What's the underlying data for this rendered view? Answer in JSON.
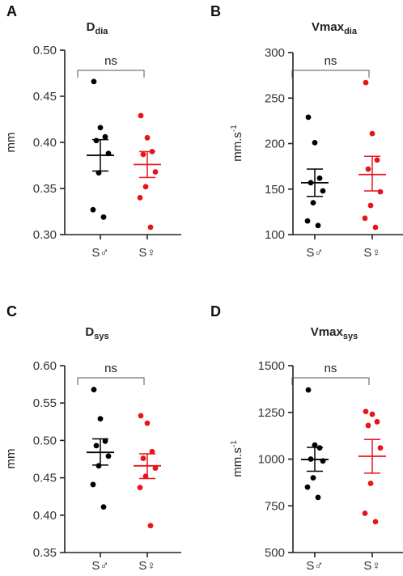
{
  "chart_data": [
    {
      "type": "scatter",
      "panel": "A",
      "title": "D",
      "title_sub": "dia",
      "ylabel": "mm",
      "ylabel_sup": "",
      "ylim": [
        0.3,
        0.5
      ],
      "yticks": [
        0.3,
        0.35,
        0.4,
        0.45,
        0.5
      ],
      "ytick_labels": [
        "0.30",
        "0.35",
        "0.40",
        "0.45",
        "0.50"
      ],
      "categories": [
        "S♂",
        "S♀"
      ],
      "significance": "ns",
      "grid": false,
      "series": [
        {
          "color": "#000000",
          "values": [
            0.466,
            0.416,
            0.406,
            0.402,
            0.388,
            0.367,
            0.327,
            0.319
          ],
          "mean": 0.386,
          "sem_low": 0.369,
          "sem_high": 0.403
        },
        {
          "color": "#e8141c",
          "values": [
            0.429,
            0.405,
            0.39,
            0.387,
            0.368,
            0.352,
            0.34,
            0.308
          ],
          "mean": 0.376,
          "sem_low": 0.362,
          "sem_high": 0.39
        }
      ]
    },
    {
      "type": "scatter",
      "panel": "B",
      "title": "Vmax",
      "title_sub": "dia",
      "ylabel": "mm.s",
      "ylabel_sup": "-1",
      "ylim": [
        100,
        300
      ],
      "yticks": [
        100,
        150,
        200,
        250,
        300
      ],
      "ytick_labels": [
        "100",
        "150",
        "200",
        "250",
        "300"
      ],
      "categories": [
        "S♂",
        "S♀"
      ],
      "significance": "ns",
      "grid": false,
      "series": [
        {
          "color": "#000000",
          "values": [
            229,
            201,
            162,
            157,
            148,
            135,
            115,
            110
          ],
          "mean": 157,
          "sem_low": 142,
          "sem_high": 172
        },
        {
          "color": "#e8141c",
          "values": [
            267,
            211,
            182,
            172,
            147,
            132,
            118,
            108
          ],
          "mean": 166,
          "sem_low": 148,
          "sem_high": 186
        }
      ]
    },
    {
      "type": "scatter",
      "panel": "C",
      "title": "D",
      "title_sub": "sys",
      "ylabel": "mm",
      "ylabel_sup": "",
      "ylim": [
        0.35,
        0.6
      ],
      "yticks": [
        0.35,
        0.4,
        0.45,
        0.5,
        0.55,
        0.6
      ],
      "ytick_labels": [
        "0.35",
        "0.40",
        "0.45",
        "0.50",
        "0.55",
        "0.60"
      ],
      "categories": [
        "S♂",
        "S♀"
      ],
      "significance": "ns",
      "grid": false,
      "series": [
        {
          "color": "#000000",
          "values": [
            0.568,
            0.529,
            0.499,
            0.493,
            0.479,
            0.466,
            0.441,
            0.411
          ],
          "mean": 0.484,
          "sem_low": 0.467,
          "sem_high": 0.502
        },
        {
          "color": "#e8141c",
          "values": [
            0.533,
            0.523,
            0.485,
            0.476,
            0.463,
            0.452,
            0.437,
            0.386
          ],
          "mean": 0.466,
          "sem_low": 0.449,
          "sem_high": 0.482
        }
      ]
    },
    {
      "type": "scatter",
      "panel": "D",
      "title": "Vmax",
      "title_sub": "sys",
      "ylabel": "mm.s",
      "ylabel_sup": "-1",
      "ylim": [
        500,
        1500
      ],
      "yticks": [
        500,
        750,
        1000,
        1250,
        1500
      ],
      "ytick_labels": [
        "500",
        "750",
        "1000",
        "1250",
        "1500"
      ],
      "categories": [
        "S♂",
        "S♀"
      ],
      "significance": "ns",
      "grid": false,
      "series": [
        {
          "color": "#000000",
          "values": [
            1370,
            1075,
            1060,
            1000,
            990,
            900,
            850,
            795
          ],
          "mean": 998,
          "sem_low": 935,
          "sem_high": 1063
        },
        {
          "color": "#e8141c",
          "values": [
            1255,
            1240,
            1200,
            1180,
            1060,
            870,
            710,
            665
          ],
          "mean": 1015,
          "sem_low": 925,
          "sem_high": 1105
        }
      ]
    }
  ]
}
